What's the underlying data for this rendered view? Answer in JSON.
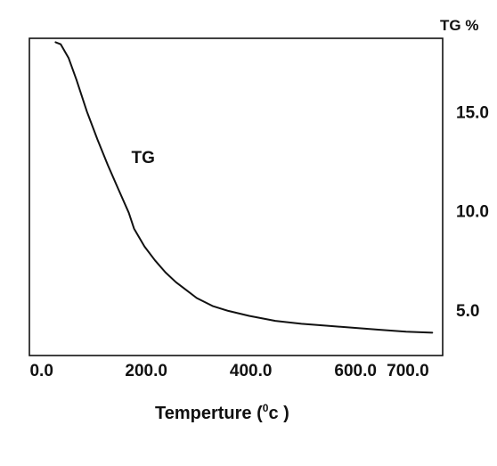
{
  "chart_data": {
    "type": "line",
    "title": "",
    "xlabel_main": "Temperture (",
    "xlabel_sup": "0",
    "xlabel_end": "c )",
    "ylabel": "TG %",
    "x_ticks": [
      "0.0",
      "200.0",
      "400.0",
      "600.0",
      "700.0"
    ],
    "x_tick_values": [
      0,
      200,
      400,
      600,
      700
    ],
    "y_ticks": [
      "5.0",
      "10.0",
      "15.0"
    ],
    "y_tick_values": [
      5,
      10,
      15
    ],
    "xlim": [
      -20,
      770
    ],
    "ylim": [
      2.7,
      18.7
    ],
    "grid": false,
    "annotations": [
      {
        "text": "TG",
        "x": 175,
        "y": 12.4
      }
    ],
    "series": [
      {
        "name": "TG",
        "x": [
          30,
          40,
          55,
          70,
          90,
          110,
          130,
          150,
          170,
          180,
          200,
          220,
          240,
          260,
          280,
          300,
          330,
          360,
          400,
          450,
          500,
          550,
          600,
          650,
          700,
          750
        ],
        "y": [
          18.5,
          18.4,
          17.7,
          16.6,
          15.0,
          13.6,
          12.3,
          11.1,
          9.9,
          9.1,
          8.2,
          7.5,
          6.9,
          6.4,
          6.0,
          5.6,
          5.2,
          4.95,
          4.7,
          4.45,
          4.3,
          4.2,
          4.1,
          4.0,
          3.9,
          3.85
        ]
      }
    ],
    "line_color": "#111111"
  }
}
